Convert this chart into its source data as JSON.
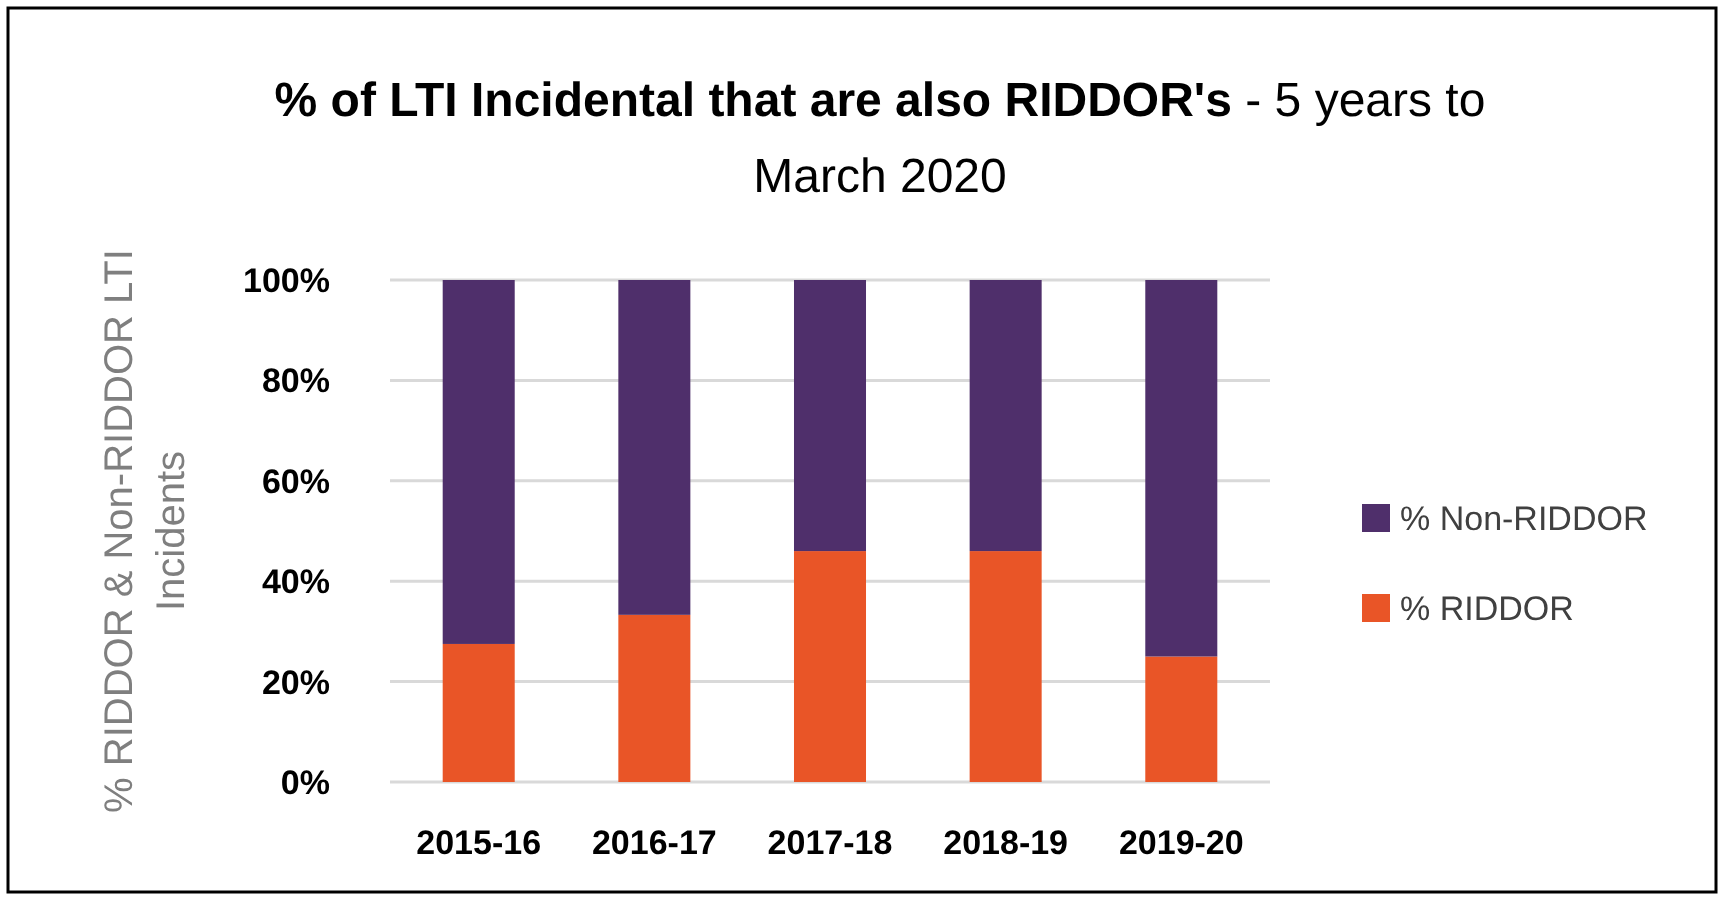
{
  "chart_data": {
    "type": "bar",
    "stacked": true,
    "title": "% of LTI Incidental that are also RIDDOR's - 5 years to March 2020",
    "ylabel": "% RIDDOR & Non-RIDDOR LTI Incidents",
    "categories": [
      "2015-16",
      "2016-17",
      "2017-18",
      "2018-19",
      "2019-20"
    ],
    "series": [
      {
        "name": "% RIDDOR",
        "color": "#e95527",
        "values": [
          27.5,
          33.3,
          46,
          46,
          25
        ]
      },
      {
        "name": "% Non-RIDDOR",
        "color": "#4f2f6b",
        "values": [
          72.5,
          66.7,
          54,
          54,
          75
        ]
      }
    ],
    "ylim": [
      0,
      100
    ],
    "yticks": [
      {
        "value": 0,
        "label": "0%"
      },
      {
        "value": 20,
        "label": "20%"
      },
      {
        "value": 40,
        "label": "40%"
      },
      {
        "value": 60,
        "label": "60%"
      },
      {
        "value": 80,
        "label": "80%"
      },
      {
        "value": 100,
        "label": "100%"
      }
    ],
    "grid": "y",
    "legend": "right"
  }
}
